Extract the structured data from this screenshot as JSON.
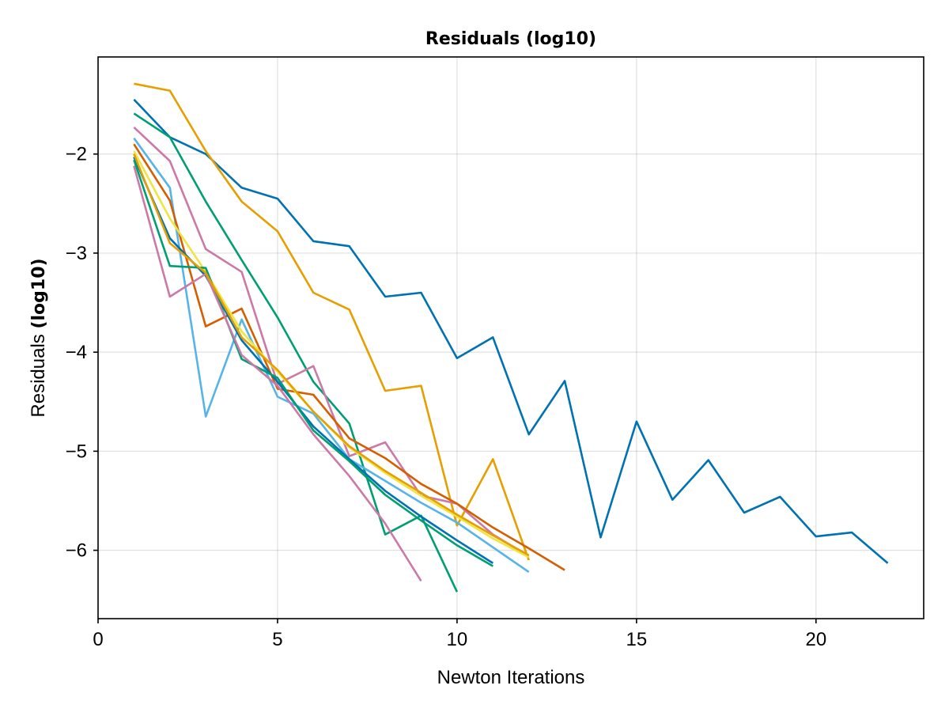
{
  "chart_data": {
    "type": "line",
    "title": "Residuals (log10)",
    "xlabel": "Newton Iterations",
    "ylabel_plain": "Residuals ",
    "ylabel_bold": "(log10)",
    "xlim": [
      0,
      23
    ],
    "ylim": [
      -6.7,
      -0.0
    ],
    "y_scale": "log10 values",
    "grid": true,
    "legend": "none",
    "x_ticks": [
      0,
      5,
      10,
      15,
      20
    ],
    "y_ticks": [
      -2,
      -3,
      -4,
      -5,
      -6
    ],
    "y_tick_labels": [
      "−2",
      "−3",
      "−4",
      "−5",
      "−6"
    ],
    "series": [
      {
        "color": "#0072b2",
        "x": [
          1,
          2,
          3,
          4,
          5,
          6,
          7,
          8,
          9,
          10,
          11,
          12,
          13,
          14,
          15,
          16,
          17,
          18,
          19,
          20,
          21,
          22
        ],
        "y": [
          -1.45,
          -1.83,
          -2.0,
          -2.34,
          -2.45,
          -2.88,
          -2.93,
          -3.44,
          -3.4,
          -4.06,
          -3.85,
          -4.83,
          -4.29,
          -5.87,
          -4.7,
          -5.49,
          -5.09,
          -5.62,
          -5.46,
          -5.86,
          -5.82,
          -6.13
        ]
      },
      {
        "color": "#e69f00",
        "x": [
          1,
          2,
          3,
          4,
          5,
          6,
          7,
          8,
          9,
          10,
          11,
          12
        ],
        "y": [
          -1.29,
          -1.36,
          -1.97,
          -2.48,
          -2.78,
          -3.4,
          -3.57,
          -4.39,
          -4.34,
          -5.75,
          -5.08,
          -6.1
        ]
      },
      {
        "color": "#009e73",
        "x": [
          1,
          2,
          3,
          4,
          5,
          6,
          7,
          8,
          9,
          10
        ],
        "y": [
          -1.59,
          -1.83,
          -2.48,
          -3.07,
          -3.65,
          -4.3,
          -4.72,
          -5.84,
          -5.65,
          -6.42
        ]
      },
      {
        "color": "#cc79a7",
        "x": [
          1,
          2,
          3,
          4,
          5,
          6,
          7,
          8,
          9,
          10,
          11,
          12
        ],
        "y": [
          -1.73,
          -2.07,
          -2.96,
          -3.19,
          -4.32,
          -4.14,
          -5.05,
          -4.91,
          -5.45,
          -5.53,
          -5.84,
          -6.06
        ]
      },
      {
        "color": "#56b4e9",
        "x": [
          1,
          2,
          3,
          4,
          5,
          6,
          7,
          8,
          9,
          10,
          11,
          12
        ],
        "y": [
          -1.84,
          -2.34,
          -4.65,
          -3.67,
          -4.45,
          -4.62,
          -5.08,
          -5.3,
          -5.52,
          -5.72,
          -5.97,
          -6.22
        ]
      },
      {
        "color": "#d55e00",
        "x": [
          1,
          2,
          3,
          4,
          5,
          6,
          7,
          8,
          9,
          10,
          11,
          12,
          13
        ],
        "y": [
          -1.9,
          -2.47,
          -3.74,
          -3.56,
          -4.37,
          -4.43,
          -4.87,
          -5.07,
          -5.33,
          -5.53,
          -5.77,
          -5.98,
          -6.2
        ]
      },
      {
        "color": "#f0e442",
        "x": [
          1,
          2,
          3,
          4,
          5,
          6,
          7,
          8,
          9,
          10,
          11,
          12
        ],
        "y": [
          -1.97,
          -2.65,
          -3.19,
          -3.79,
          -4.2,
          -4.6,
          -4.96,
          -5.22,
          -5.45,
          -5.66,
          -5.88,
          -6.07
        ]
      },
      {
        "color": "#0072b2",
        "x": [
          1,
          2,
          3,
          4,
          5,
          6,
          7,
          8,
          9,
          10,
          11
        ],
        "y": [
          -2.03,
          -2.85,
          -3.23,
          -3.88,
          -4.3,
          -4.75,
          -5.08,
          -5.4,
          -5.66,
          -5.9,
          -6.13
        ]
      },
      {
        "color": "#009e73",
        "x": [
          1,
          2,
          3,
          4,
          5,
          6,
          7,
          8,
          9,
          10,
          11
        ],
        "y": [
          -2.06,
          -3.13,
          -3.15,
          -4.07,
          -4.26,
          -4.79,
          -5.1,
          -5.44,
          -5.7,
          -5.95,
          -6.16
        ]
      },
      {
        "color": "#cc79a7",
        "x": [
          1,
          2,
          3,
          4,
          5,
          6,
          7,
          8,
          9
        ],
        "y": [
          -2.12,
          -3.44,
          -3.21,
          -4.03,
          -4.34,
          -4.83,
          -5.25,
          -5.73,
          -6.31
        ]
      },
      {
        "color": "#e69f00",
        "x": [
          1,
          2,
          3,
          4,
          5,
          6,
          7,
          8,
          9,
          10,
          11,
          12
        ],
        "y": [
          -2.0,
          -2.9,
          -3.2,
          -3.85,
          -4.18,
          -4.6,
          -4.95,
          -5.2,
          -5.42,
          -5.64,
          -5.85,
          -6.05
        ]
      }
    ]
  }
}
